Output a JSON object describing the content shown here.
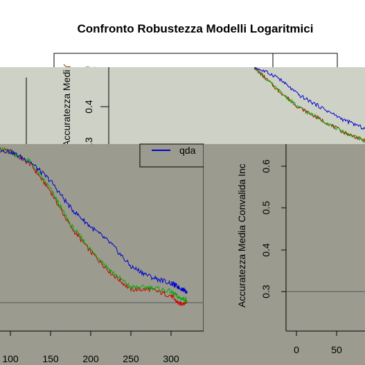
{
  "title": "Confronto Robustezza Modelli Logaritmici",
  "colors": {
    "background": "#ffffff",
    "panel_light": "#ced1c5",
    "panel_dark": "#9b9c8f",
    "series_red": "#cc0000",
    "series_green": "#00aa00",
    "series_blue": "#0000cc"
  },
  "windows": [
    {
      "id": "top-window",
      "ylabel": "Accuratezza Medi",
      "yticks": [
        "0.4",
        "0.3"
      ]
    },
    {
      "id": "bottom-left-window",
      "legend_label": "qda",
      "xticks": [
        "100",
        "150",
        "200",
        "250",
        "300"
      ]
    },
    {
      "id": "bottom-right-window",
      "ylabel": "Accuratezza Media Convalida Inc",
      "yticks": [
        "0.6",
        "0.5",
        "0.4",
        "0.3"
      ],
      "xticks": [
        "0",
        "50"
      ]
    }
  ],
  "chart_data": {
    "type": "line",
    "title": "Confronto Robustezza Modelli Logaritmici",
    "xlabel": "",
    "ylabel": "Accuratezza Media Convalida Inc",
    "x_ticks": [
      100,
      150,
      200,
      250,
      300
    ],
    "y_ticks": [
      0.3,
      0.4,
      0.5,
      0.6
    ],
    "series": [
      {
        "name": "",
        "color": "#cc0000",
        "x": [
          70,
          100,
          125,
          150,
          175,
          200,
          225,
          250,
          275,
          300,
          310,
          320
        ],
        "y": [
          0.645,
          0.635,
          0.605,
          0.54,
          0.455,
          0.395,
          0.345,
          0.305,
          0.305,
          0.29,
          0.27,
          0.275
        ]
      },
      {
        "name": "",
        "color": "#00aa00",
        "x": [
          70,
          100,
          125,
          150,
          175,
          200,
          225,
          250,
          275,
          300,
          310,
          320
        ],
        "y": [
          0.645,
          0.635,
          0.61,
          0.545,
          0.46,
          0.4,
          0.35,
          0.31,
          0.31,
          0.3,
          0.285,
          0.28
        ]
      },
      {
        "name": "qda",
        "color": "#0000cc",
        "x": [
          70,
          100,
          125,
          150,
          175,
          200,
          225,
          250,
          275,
          300,
          310,
          320
        ],
        "y": [
          0.645,
          0.635,
          0.61,
          0.565,
          0.5,
          0.455,
          0.415,
          0.36,
          0.335,
          0.32,
          0.31,
          0.3
        ]
      }
    ]
  }
}
